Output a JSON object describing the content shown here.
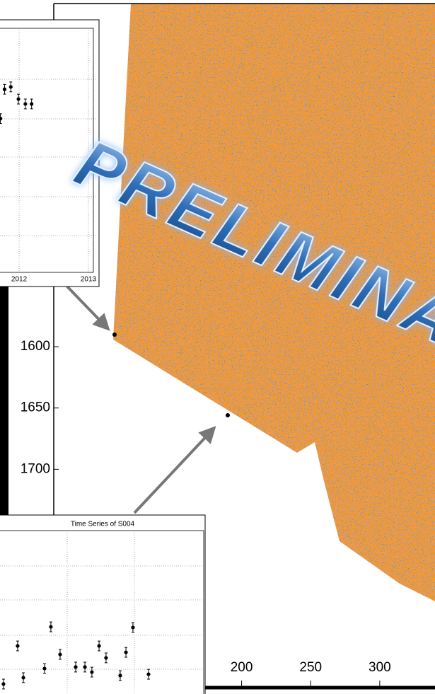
{
  "map": {
    "xticks": [
      200,
      250,
      300
    ],
    "yticks": [
      1600,
      1650,
      1700
    ],
    "xlim": [
      64,
      340
    ],
    "ylim": [
      1320,
      1877
    ]
  },
  "watermark": "PRELIMINARY",
  "inset_top": {
    "type": "scatter",
    "xticks": [
      2012,
      2013
    ],
    "xlim": [
      2011.724,
      2013.153
    ],
    "ylim": [
      0,
      1
    ],
    "x": [
      2011.73,
      2011.79,
      2011.88,
      2011.99,
      2012.09,
      2012.18
    ],
    "values": [
      0.63,
      0.75,
      0.76,
      0.71,
      0.69,
      0.69
    ],
    "errors": [
      0.02,
      0.02,
      0.02,
      0.02,
      0.02,
      0.02
    ]
  },
  "inset_bottom": {
    "type": "scatter",
    "title": "Time Series of S004",
    "xlim": [
      0,
      1
    ],
    "ylim": [
      0,
      1
    ],
    "x": [
      0.017,
      0.086,
      0.114,
      0.217,
      0.248,
      0.293,
      0.369,
      0.414,
      0.448,
      0.483,
      0.517,
      0.586,
      0.614,
      0.648,
      0.724
    ],
    "values": [
      0.061,
      0.294,
      0.1,
      0.156,
      0.411,
      0.242,
      0.165,
      0.165,
      0.134,
      0.294,
      0.221,
      0.113,
      0.255,
      0.407,
      0.121
    ],
    "errors": [
      0.03,
      0.03,
      0.03,
      0.03,
      0.03,
      0.03,
      0.03,
      0.03,
      0.03,
      0.03,
      0.03,
      0.03,
      0.03,
      0.03,
      0.03
    ]
  }
}
